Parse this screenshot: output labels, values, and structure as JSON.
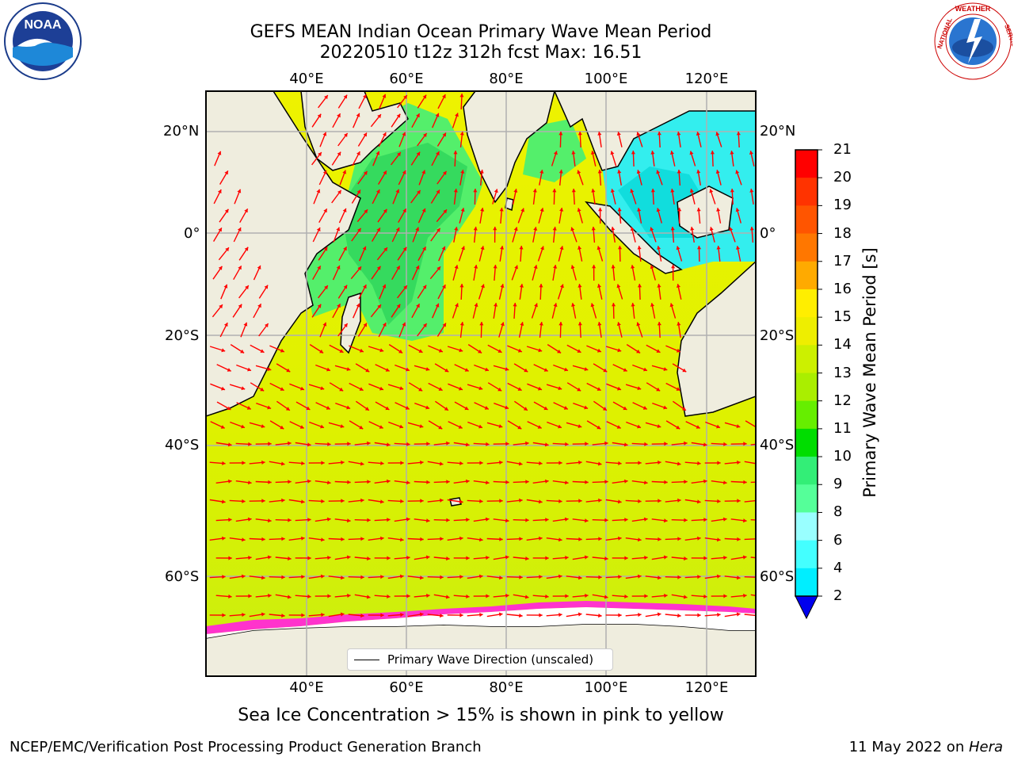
{
  "title": {
    "line1": "GEFS MEAN Indian Ocean Primary Wave Mean Period",
    "line2": "20220510 t12z 312h fcst   Max: 16.51"
  },
  "axes": {
    "lon_ticks": [
      "40°E",
      "60°E",
      "80°E",
      "100°E",
      "120°E"
    ],
    "lat_ticks": [
      "20°N",
      "0°",
      "20°S",
      "40°S",
      "60°S"
    ]
  },
  "colorbar": {
    "title": "Primary Wave Mean Period [s]",
    "labels": [
      "21",
      "20",
      "19",
      "18",
      "17",
      "16",
      "15",
      "14",
      "13",
      "12",
      "11",
      "10",
      "9",
      "8",
      "6",
      "4",
      "2"
    ],
    "colors": [
      "#ff0000",
      "#ff3300",
      "#ff5500",
      "#ff7700",
      "#ff9900",
      "#ffbb00",
      "#ffee00",
      "#eeee00",
      "#ccf000",
      "#aaee00",
      "#66ee00",
      "#00dd00",
      "#33ee66",
      "#55ff99",
      "#99ffff",
      "#44ffff",
      "#00eeff",
      "#00bbff",
      "#0066ff"
    ],
    "extend_color": "#0000ee"
  },
  "legend": {
    "label": "Primary Wave Direction (unscaled)"
  },
  "caption": "Sea Ice Concentration > 15% is shown in pink to yellow",
  "footer": {
    "left": "NCEP/EMC/Verification Post Processing Product Generation Branch",
    "right_prefix": "11 May 2022 on ",
    "right_host": "Hera"
  },
  "logos": {
    "left_text": "NOAA",
    "left_ring_text": "NATIONAL OCEANIC AND ATMOSPHERIC ADMINISTRATION · U.S. DEPARTMENT OF COMMERCE",
    "right_ring_text": "NATIONAL WEATHER SERVICE"
  },
  "colors": {
    "land": "#efedde",
    "ocean_main": "#ddf100",
    "ocean_high": "#eef200",
    "ocean_green": "#44ee77",
    "ocean_cyan": "#33eeee",
    "arrow": "#ff0000",
    "ice_pink": "#ff33cc",
    "grid": "#b0b0b0"
  },
  "chart_data": {
    "type": "heatmap",
    "title": "GEFS MEAN Indian Ocean Primary Wave Mean Period",
    "subtitle": "20220510 t12z 312h fcst   Max: 16.51",
    "max_value": 16.51,
    "units": "s",
    "lon_range": [
      20,
      130
    ],
    "lat_range": [
      -72,
      28
    ],
    "colorbar_levels": [
      2,
      4,
      6,
      8,
      9,
      10,
      11,
      12,
      13,
      14,
      15,
      16,
      17,
      18,
      19,
      20,
      21
    ],
    "grid": true
  }
}
